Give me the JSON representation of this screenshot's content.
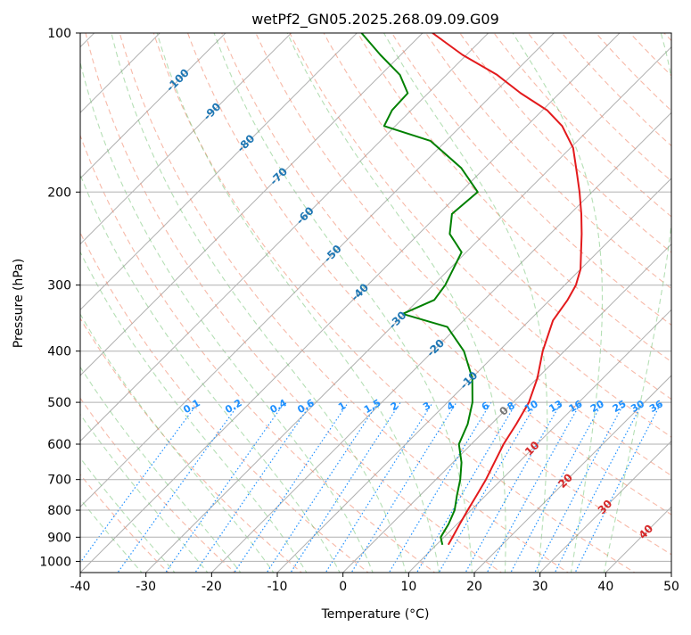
{
  "chart_data": {
    "type": "line",
    "title": "wetPf2_GN05.2025.268.09.09.G09",
    "xlabel": "Temperature (°C)",
    "ylabel": "Pressure (hPa)",
    "xlim": [
      -40,
      50
    ],
    "ylim": [
      1050,
      100
    ],
    "y_scale": "log",
    "x_ticks": [
      "-40",
      "-30",
      "-20",
      "-10",
      "0",
      "10",
      "20",
      "30",
      "40",
      "50"
    ],
    "y_ticks": [
      {
        "p": 100,
        "label": "100"
      },
      {
        "p": 200,
        "label": "200"
      },
      {
        "p": 300,
        "label": "300"
      },
      {
        "p": 400,
        "label": "400"
      },
      {
        "p": 500,
        "label": "500"
      },
      {
        "p": 600,
        "label": "600"
      },
      {
        "p": 700,
        "label": "700"
      },
      {
        "p": 800,
        "label": "800"
      },
      {
        "p": 900,
        "label": "900"
      },
      {
        "p": 1000,
        "label": "1000"
      }
    ],
    "skew": 1.0,
    "grid": true,
    "series": [
      {
        "name": "Temperature",
        "color": "#e31a1c",
        "points": [
          [
            11.8,
            930
          ],
          [
            11.3,
            900
          ],
          [
            10.4,
            850
          ],
          [
            9.5,
            800
          ],
          [
            8.6,
            750
          ],
          [
            7.6,
            700
          ],
          [
            6.3,
            650
          ],
          [
            4.9,
            600
          ],
          [
            3.8,
            550
          ],
          [
            2.4,
            500
          ],
          [
            0.0,
            450
          ],
          [
            -3.3,
            400
          ],
          [
            -6.4,
            350
          ],
          [
            -7.3,
            320
          ],
          [
            -8.3,
            300
          ],
          [
            -10.0,
            280
          ],
          [
            -12.5,
            260
          ],
          [
            -15.2,
            240
          ],
          [
            -18.3,
            220
          ],
          [
            -21.9,
            200
          ],
          [
            -25.0,
            185
          ],
          [
            -29.6,
            165
          ],
          [
            -34.6,
            150
          ],
          [
            -39.3,
            140
          ],
          [
            -45.9,
            130
          ],
          [
            -52.3,
            120
          ],
          [
            -60.6,
            110
          ],
          [
            -68.5,
            100
          ]
        ]
      },
      {
        "name": "Dewpoint",
        "color": "#008000",
        "points": [
          [
            10.9,
            930
          ],
          [
            9.5,
            900
          ],
          [
            8.7,
            850
          ],
          [
            7.5,
            800
          ],
          [
            5.6,
            750
          ],
          [
            3.7,
            700
          ],
          [
            1.3,
            650
          ],
          [
            -1.9,
            600
          ],
          [
            -3.6,
            550
          ],
          [
            -6.2,
            500
          ],
          [
            -9.9,
            450
          ],
          [
            -15.3,
            400
          ],
          [
            -21.5,
            360
          ],
          [
            -30.3,
            340
          ],
          [
            -27.6,
            320
          ],
          [
            -28.2,
            300
          ],
          [
            -29.4,
            280
          ],
          [
            -30.7,
            260
          ],
          [
            -35.3,
            240
          ],
          [
            -38.0,
            220
          ],
          [
            -37.4,
            200
          ],
          [
            -43.6,
            180
          ],
          [
            -52.4,
            160
          ],
          [
            -61.7,
            150
          ],
          [
            -62.9,
            140
          ],
          [
            -63.1,
            130
          ],
          [
            -67.1,
            120
          ],
          [
            -73.1,
            110
          ],
          [
            -79.3,
            100
          ]
        ]
      }
    ],
    "isotherm_labels": [
      "-100",
      "-90",
      "-80",
      "-70",
      "-60",
      "-50",
      "-40",
      "-30",
      "-20",
      "-10",
      "0",
      "10",
      "20",
      "30",
      "40"
    ],
    "mixing_ratio_labels": [
      "0.1",
      "0.2",
      "0.4",
      "0.6",
      "1",
      "1.5",
      "2",
      "3",
      "4",
      "6",
      "8",
      "10",
      "13",
      "16",
      "20",
      "25",
      "30",
      "36"
    ],
    "colors": {
      "isotherm_cold": "#1f77b4",
      "isotherm_zero": "#777777",
      "isotherm_warm": "#d62728",
      "mixing_ratio": "#1e90ff",
      "dry_adiabat": "#f08060",
      "moist_adiabat": "#5cb85c",
      "grid": "#b0b0b0"
    }
  }
}
